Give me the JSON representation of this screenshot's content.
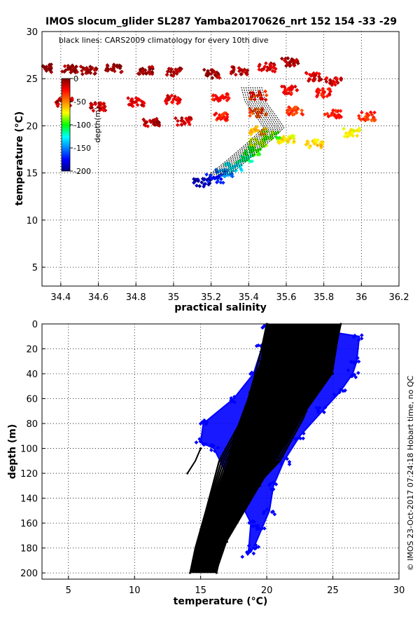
{
  "title": "IMOS slocum_glider SL287 Yamba20170626_nrt 152  154  -33  -29",
  "credit": "© IMOS 23-Oct-2017 07:24:18 Hobart time, no QC",
  "chart_data": [
    {
      "type": "scatter",
      "annotation": "black lines: CARS2009 climatology for every 10th dive",
      "xlabel": "practical salinity",
      "ylabel": "temperature (°C)",
      "xlim": [
        34.3,
        36.2
      ],
      "ylim": [
        3,
        30
      ],
      "xticks": [
        34.4,
        34.6,
        34.8,
        35,
        35.2,
        35.4,
        35.6,
        35.8,
        36,
        36.2
      ],
      "xticklabels": [
        "34.4",
        "34.6",
        "34.8",
        "35",
        "35.2",
        "35.4",
        "35.6",
        "35.8",
        "36",
        "36.2"
      ],
      "yticks": [
        5,
        10,
        15,
        20,
        25,
        30
      ],
      "yticklabels": [
        "5",
        "10",
        "15",
        "20",
        "25",
        "30"
      ],
      "grid": true,
      "colorbar": {
        "label": "depth(m)",
        "range": [
          -200,
          0
        ],
        "ticks": [
          0,
          -50,
          -100,
          -150,
          -200
        ],
        "ticklabels": [
          "0",
          "-50",
          "-100",
          "-150",
          "-200"
        ],
        "colormap": "jet",
        "placement": "upper-left"
      },
      "series": [
        {
          "points": [
            {
              "x": 34.32,
              "y": 26.1,
              "depth": -2
            },
            {
              "x": 34.45,
              "y": 26.0,
              "depth": -3
            },
            {
              "x": 34.55,
              "y": 25.9,
              "depth": -4
            },
            {
              "x": 34.68,
              "y": 26.1,
              "depth": -3
            },
            {
              "x": 34.85,
              "y": 25.9,
              "depth": -5
            },
            {
              "x": 35.0,
              "y": 25.7,
              "depth": -6
            },
            {
              "x": 35.2,
              "y": 25.5,
              "depth": -8
            },
            {
              "x": 35.35,
              "y": 25.8,
              "depth": -10
            },
            {
              "x": 35.5,
              "y": 26.2,
              "depth": -12
            },
            {
              "x": 35.62,
              "y": 26.8,
              "depth": -5
            },
            {
              "x": 35.75,
              "y": 25.2,
              "depth": -15
            },
            {
              "x": 35.85,
              "y": 24.7,
              "depth": -18
            },
            {
              "x": 34.42,
              "y": 22.5,
              "depth": -10
            },
            {
              "x": 34.6,
              "y": 22.0,
              "depth": -14
            },
            {
              "x": 34.8,
              "y": 22.5,
              "depth": -16
            },
            {
              "x": 35.0,
              "y": 22.8,
              "depth": -20
            },
            {
              "x": 35.25,
              "y": 23.0,
              "depth": -25
            },
            {
              "x": 35.45,
              "y": 23.2,
              "depth": -30
            },
            {
              "x": 35.62,
              "y": 23.8,
              "depth": -22
            },
            {
              "x": 35.8,
              "y": 23.5,
              "depth": -26
            },
            {
              "x": 34.88,
              "y": 20.4,
              "depth": -10
            },
            {
              "x": 35.05,
              "y": 20.5,
              "depth": -15
            },
            {
              "x": 35.25,
              "y": 20.9,
              "depth": -30
            },
            {
              "x": 35.45,
              "y": 21.4,
              "depth": -40
            },
            {
              "x": 35.65,
              "y": 21.6,
              "depth": -35
            },
            {
              "x": 35.85,
              "y": 21.3,
              "depth": -30
            },
            {
              "x": 36.03,
              "y": 21.0,
              "depth": -35
            },
            {
              "x": 35.45,
              "y": 19.5,
              "depth": -60
            },
            {
              "x": 35.6,
              "y": 18.6,
              "depth": -70
            },
            {
              "x": 35.75,
              "y": 18.1,
              "depth": -65
            },
            {
              "x": 35.95,
              "y": 19.3,
              "depth": -75
            },
            {
              "x": 35.45,
              "y": 18.2,
              "depth": -80
            },
            {
              "x": 35.52,
              "y": 19.0,
              "depth": -90
            },
            {
              "x": 35.42,
              "y": 17.3,
              "depth": -100
            },
            {
              "x": 35.38,
              "y": 16.5,
              "depth": -115
            },
            {
              "x": 35.32,
              "y": 15.6,
              "depth": -130
            },
            {
              "x": 35.27,
              "y": 14.9,
              "depth": -150
            },
            {
              "x": 35.22,
              "y": 14.4,
              "depth": -175
            },
            {
              "x": 35.15,
              "y": 14.0,
              "depth": -195
            }
          ]
        }
      ]
    },
    {
      "type": "scatter",
      "xlabel": "temperature (°C)",
      "ylabel": "depth (m)",
      "xlim": [
        3,
        30
      ],
      "ylim": [
        205,
        0
      ],
      "xticks": [
        5,
        10,
        15,
        20,
        25,
        30
      ],
      "xticklabels": [
        "5",
        "10",
        "15",
        "20",
        "25",
        "30"
      ],
      "yticks": [
        0,
        20,
        40,
        60,
        80,
        100,
        120,
        140,
        160,
        180,
        200
      ],
      "yticklabels": [
        "0",
        "20",
        "40",
        "60",
        "80",
        "100",
        "120",
        "140",
        "160",
        "180",
        "200"
      ],
      "grid": true,
      "series": [
        {
          "color": "#0000ff",
          "points": [
            {
              "x": 20.0,
              "y": 0
            },
            {
              "x": 24.0,
              "y": 5
            },
            {
              "x": 27.0,
              "y": 10
            },
            {
              "x": 26.8,
              "y": 30
            },
            {
              "x": 26.5,
              "y": 40
            },
            {
              "x": 25.5,
              "y": 55
            },
            {
              "x": 24.2,
              "y": 70
            },
            {
              "x": 22.5,
              "y": 90
            },
            {
              "x": 21.3,
              "y": 110
            },
            {
              "x": 20.5,
              "y": 130
            },
            {
              "x": 20.2,
              "y": 150
            },
            {
              "x": 19.6,
              "y": 165
            },
            {
              "x": 19.0,
              "y": 180
            },
            {
              "x": 18.6,
              "y": 185
            },
            {
              "x": 18.8,
              "y": 160
            },
            {
              "x": 16.0,
              "y": 100
            },
            {
              "x": 15.0,
              "y": 95
            },
            {
              "x": 15.2,
              "y": 80
            },
            {
              "x": 17.5,
              "y": 60
            },
            {
              "x": 19.0,
              "y": 40
            },
            {
              "x": 19.6,
              "y": 20
            }
          ]
        },
        {
          "color": "#000000",
          "points": [
            {
              "x": 20.0,
              "y": 0
            },
            {
              "x": 19.5,
              "y": 30
            },
            {
              "x": 18.7,
              "y": 55
            },
            {
              "x": 17.5,
              "y": 90
            },
            {
              "x": 16.5,
              "y": 130
            },
            {
              "x": 15.0,
              "y": 165
            },
            {
              "x": 14.2,
              "y": 200
            },
            {
              "x": 25.6,
              "y": 0
            },
            {
              "x": 25.0,
              "y": 40
            },
            {
              "x": 23.0,
              "y": 70
            },
            {
              "x": 19.5,
              "y": 130
            },
            {
              "x": 17.0,
              "y": 175
            },
            {
              "x": 16.2,
              "y": 200
            },
            {
              "x": 14.0,
              "y": 120
            },
            {
              "x": 15.0,
              "y": 100
            }
          ]
        }
      ]
    }
  ]
}
